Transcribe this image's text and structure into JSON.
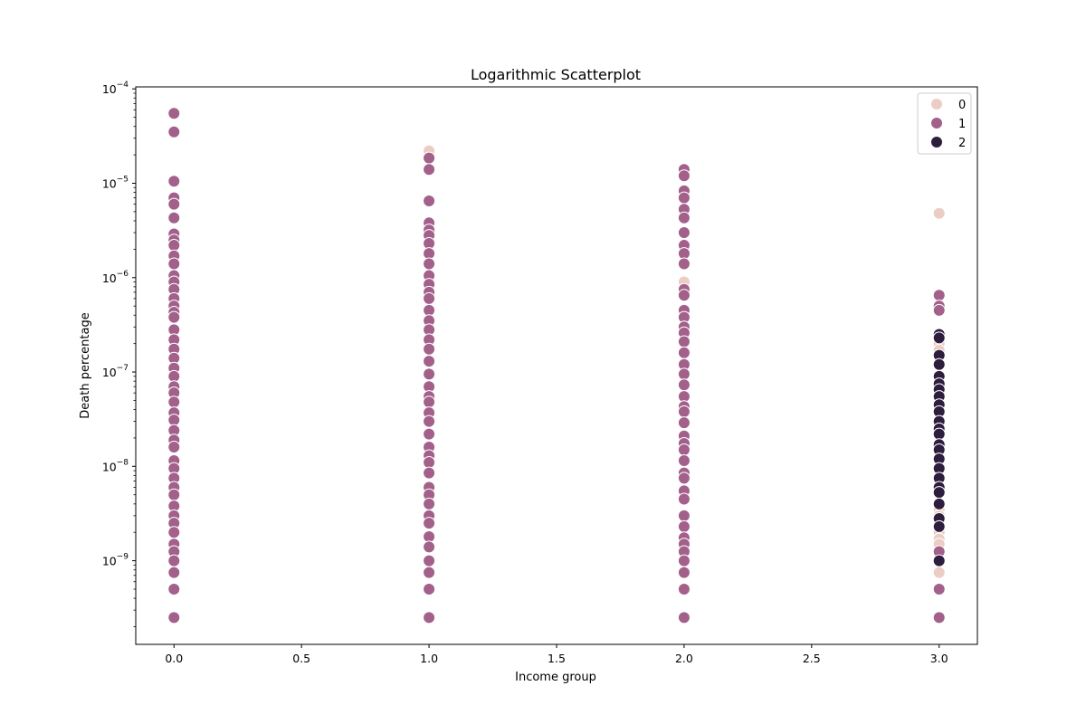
{
  "chart_data": {
    "type": "scatter",
    "title": "Logarithmic Scatterplot",
    "xlabel": "Income group",
    "ylabel": "Death percentage",
    "xlim": [
      -0.15,
      3.15
    ],
    "ylim": [
      1.3e-10,
      0.000105
    ],
    "yscale": "log",
    "grid": false,
    "legend_position": "top-right",
    "x_ticks": [
      "0.0",
      "0.5",
      "1.0",
      "1.5",
      "2.0",
      "2.5",
      "3.0"
    ],
    "x_tick_values": [
      0,
      0.5,
      1,
      1.5,
      2,
      2.5,
      3
    ],
    "y_tick_exponents": [
      "-9",
      "-8",
      "-7",
      "-6",
      "-5",
      "-4"
    ],
    "y_tick_values": [
      1e-09,
      1e-08,
      1e-07,
      1e-06,
      1e-05,
      0.0001
    ],
    "series": [
      {
        "name": "0",
        "color": "#ebcdc4",
        "points": [
          {
            "x": 1,
            "y": 2.2e-05
          },
          {
            "x": 2,
            "y": 9e-07
          },
          {
            "x": 3,
            "y": 4.8e-06
          },
          {
            "x": 3,
            "y": 2e-07
          },
          {
            "x": 3,
            "y": 1.7e-07
          },
          {
            "x": 3,
            "y": 3.5e-09
          },
          {
            "x": 3,
            "y": 3e-09
          },
          {
            "x": 3,
            "y": 2e-09
          },
          {
            "x": 3,
            "y": 1.7e-09
          },
          {
            "x": 3,
            "y": 1.5e-09
          },
          {
            "x": 3,
            "y": 7.5e-10
          }
        ]
      },
      {
        "name": "1",
        "color": "#a2608a",
        "points": [
          {
            "x": 0,
            "y": 5.5e-05
          },
          {
            "x": 0,
            "y": 3.5e-05
          },
          {
            "x": 0,
            "y": 1.05e-05
          },
          {
            "x": 0,
            "y": 7e-06
          },
          {
            "x": 0,
            "y": 6e-06
          },
          {
            "x": 0,
            "y": 4.3e-06
          },
          {
            "x": 0,
            "y": 2.9e-06
          },
          {
            "x": 0,
            "y": 2.5e-06
          },
          {
            "x": 0,
            "y": 2.2e-06
          },
          {
            "x": 0,
            "y": 1.7e-06
          },
          {
            "x": 0,
            "y": 1.4e-06
          },
          {
            "x": 0,
            "y": 1.05e-06
          },
          {
            "x": 0,
            "y": 9e-07
          },
          {
            "x": 0,
            "y": 7.5e-07
          },
          {
            "x": 0,
            "y": 6e-07
          },
          {
            "x": 0,
            "y": 5e-07
          },
          {
            "x": 0,
            "y": 4.3e-07
          },
          {
            "x": 0,
            "y": 3.8e-07
          },
          {
            "x": 0,
            "y": 2.8e-07
          },
          {
            "x": 0,
            "y": 2.2e-07
          },
          {
            "x": 0,
            "y": 1.75e-07
          },
          {
            "x": 0,
            "y": 1.4e-07
          },
          {
            "x": 0,
            "y": 1.1e-07
          },
          {
            "x": 0,
            "y": 9e-08
          },
          {
            "x": 0,
            "y": 7e-08
          },
          {
            "x": 0,
            "y": 6e-08
          },
          {
            "x": 0,
            "y": 4.8e-08
          },
          {
            "x": 0,
            "y": 3.7e-08
          },
          {
            "x": 0,
            "y": 3.1e-08
          },
          {
            "x": 0,
            "y": 2.4e-08
          },
          {
            "x": 0,
            "y": 1.9e-08
          },
          {
            "x": 0,
            "y": 1.6e-08
          },
          {
            "x": 0,
            "y": 1.15e-08
          },
          {
            "x": 0,
            "y": 9.5e-09
          },
          {
            "x": 0,
            "y": 7.5e-09
          },
          {
            "x": 0,
            "y": 6e-09
          },
          {
            "x": 0,
            "y": 5e-09
          },
          {
            "x": 0,
            "y": 3.8e-09
          },
          {
            "x": 0,
            "y": 3e-09
          },
          {
            "x": 0,
            "y": 2.5e-09
          },
          {
            "x": 0,
            "y": 2e-09
          },
          {
            "x": 0,
            "y": 1.5e-09
          },
          {
            "x": 0,
            "y": 1.25e-09
          },
          {
            "x": 0,
            "y": 1e-09
          },
          {
            "x": 0,
            "y": 7.5e-10
          },
          {
            "x": 0,
            "y": 5e-10
          },
          {
            "x": 0,
            "y": 2.5e-10
          },
          {
            "x": 1,
            "y": 1.85e-05
          },
          {
            "x": 1,
            "y": 1.4e-05
          },
          {
            "x": 1,
            "y": 6.5e-06
          },
          {
            "x": 1,
            "y": 3.8e-06
          },
          {
            "x": 1,
            "y": 3.2e-06
          },
          {
            "x": 1,
            "y": 2.8e-06
          },
          {
            "x": 1,
            "y": 2.3e-06
          },
          {
            "x": 1,
            "y": 1.8e-06
          },
          {
            "x": 1,
            "y": 1.4e-06
          },
          {
            "x": 1,
            "y": 1.05e-06
          },
          {
            "x": 1,
            "y": 8.5e-07
          },
          {
            "x": 1,
            "y": 7e-07
          },
          {
            "x": 1,
            "y": 6e-07
          },
          {
            "x": 1,
            "y": 4.5e-07
          },
          {
            "x": 1,
            "y": 3.5e-07
          },
          {
            "x": 1,
            "y": 2.8e-07
          },
          {
            "x": 1,
            "y": 2.2e-07
          },
          {
            "x": 1,
            "y": 1.75e-07
          },
          {
            "x": 1,
            "y": 1.3e-07
          },
          {
            "x": 1,
            "y": 9.5e-08
          },
          {
            "x": 1,
            "y": 7e-08
          },
          {
            "x": 1,
            "y": 5.5e-08
          },
          {
            "x": 1,
            "y": 4.8e-08
          },
          {
            "x": 1,
            "y": 3.7e-08
          },
          {
            "x": 1,
            "y": 3e-08
          },
          {
            "x": 1,
            "y": 2.2e-08
          },
          {
            "x": 1,
            "y": 1.6e-08
          },
          {
            "x": 1,
            "y": 1.3e-08
          },
          {
            "x": 1,
            "y": 1.1e-08
          },
          {
            "x": 1,
            "y": 8.5e-09
          },
          {
            "x": 1,
            "y": 6e-09
          },
          {
            "x": 1,
            "y": 5e-09
          },
          {
            "x": 1,
            "y": 4e-09
          },
          {
            "x": 1,
            "y": 3e-09
          },
          {
            "x": 1,
            "y": 2.5e-09
          },
          {
            "x": 1,
            "y": 1.8e-09
          },
          {
            "x": 1,
            "y": 1.4e-09
          },
          {
            "x": 1,
            "y": 1e-09
          },
          {
            "x": 1,
            "y": 7.5e-10
          },
          {
            "x": 1,
            "y": 5e-10
          },
          {
            "x": 1,
            "y": 2.5e-10
          },
          {
            "x": 2,
            "y": 1.4e-05
          },
          {
            "x": 2,
            "y": 1.2e-05
          },
          {
            "x": 2,
            "y": 8.3e-06
          },
          {
            "x": 2,
            "y": 7e-06
          },
          {
            "x": 2,
            "y": 5.3e-06
          },
          {
            "x": 2,
            "y": 4.3e-06
          },
          {
            "x": 2,
            "y": 3e-06
          },
          {
            "x": 2,
            "y": 2.2e-06
          },
          {
            "x": 2,
            "y": 1.8e-06
          },
          {
            "x": 2,
            "y": 1.4e-06
          },
          {
            "x": 2,
            "y": 7.5e-07
          },
          {
            "x": 2,
            "y": 6.5e-07
          },
          {
            "x": 2,
            "y": 4.5e-07
          },
          {
            "x": 2,
            "y": 3.8e-07
          },
          {
            "x": 2,
            "y": 3e-07
          },
          {
            "x": 2,
            "y": 2.6e-07
          },
          {
            "x": 2,
            "y": 2.1e-07
          },
          {
            "x": 2,
            "y": 1.6e-07
          },
          {
            "x": 2,
            "y": 1.2e-07
          },
          {
            "x": 2,
            "y": 9.5e-08
          },
          {
            "x": 2,
            "y": 7.3e-08
          },
          {
            "x": 2,
            "y": 5.5e-08
          },
          {
            "x": 2,
            "y": 4.3e-08
          },
          {
            "x": 2,
            "y": 3.8e-08
          },
          {
            "x": 2,
            "y": 2.9e-08
          },
          {
            "x": 2,
            "y": 2.1e-08
          },
          {
            "x": 2,
            "y": 1.75e-08
          },
          {
            "x": 2,
            "y": 1.5e-08
          },
          {
            "x": 2,
            "y": 1.15e-08
          },
          {
            "x": 2,
            "y": 8.5e-09
          },
          {
            "x": 2,
            "y": 7.5e-09
          },
          {
            "x": 2,
            "y": 5.5e-09
          },
          {
            "x": 2,
            "y": 4.5e-09
          },
          {
            "x": 2,
            "y": 3e-09
          },
          {
            "x": 2,
            "y": 2.3e-09
          },
          {
            "x": 2,
            "y": 1.75e-09
          },
          {
            "x": 2,
            "y": 1.5e-09
          },
          {
            "x": 2,
            "y": 1.25e-09
          },
          {
            "x": 2,
            "y": 1e-09
          },
          {
            "x": 2,
            "y": 7.5e-10
          },
          {
            "x": 2,
            "y": 5e-10
          },
          {
            "x": 2,
            "y": 2.5e-10
          },
          {
            "x": 3,
            "y": 6.5e-07
          },
          {
            "x": 3,
            "y": 5e-07
          },
          {
            "x": 3,
            "y": 4.5e-07
          },
          {
            "x": 3,
            "y": 1.25e-09
          },
          {
            "x": 3,
            "y": 5e-10
          },
          {
            "x": 3,
            "y": 2.5e-10
          }
        ]
      },
      {
        "name": "2",
        "color": "#2d1e3e",
        "points": [
          {
            "x": 3,
            "y": 2.5e-07
          },
          {
            "x": 3,
            "y": 2.3e-07
          },
          {
            "x": 3,
            "y": 1.5e-07
          },
          {
            "x": 3,
            "y": 1.2e-07
          },
          {
            "x": 3,
            "y": 9e-08
          },
          {
            "x": 3,
            "y": 7.5e-08
          },
          {
            "x": 3,
            "y": 6.5e-08
          },
          {
            "x": 3,
            "y": 5.5e-08
          },
          {
            "x": 3,
            "y": 4.5e-08
          },
          {
            "x": 3,
            "y": 3.8e-08
          },
          {
            "x": 3,
            "y": 3e-08
          },
          {
            "x": 3,
            "y": 2.5e-08
          },
          {
            "x": 3,
            "y": 2.2e-08
          },
          {
            "x": 3,
            "y": 1.7e-08
          },
          {
            "x": 3,
            "y": 1.5e-08
          },
          {
            "x": 3,
            "y": 1.2e-08
          },
          {
            "x": 3,
            "y": 9.5e-09
          },
          {
            "x": 3,
            "y": 7.5e-09
          },
          {
            "x": 3,
            "y": 6e-09
          },
          {
            "x": 3,
            "y": 5.3e-09
          },
          {
            "x": 3,
            "y": 4e-09
          },
          {
            "x": 3,
            "y": 2.8e-09
          },
          {
            "x": 3,
            "y": 2.3e-09
          },
          {
            "x": 3,
            "y": 1e-09
          }
        ]
      }
    ],
    "legend": {
      "entries": [
        "0",
        "1",
        "2"
      ]
    }
  }
}
